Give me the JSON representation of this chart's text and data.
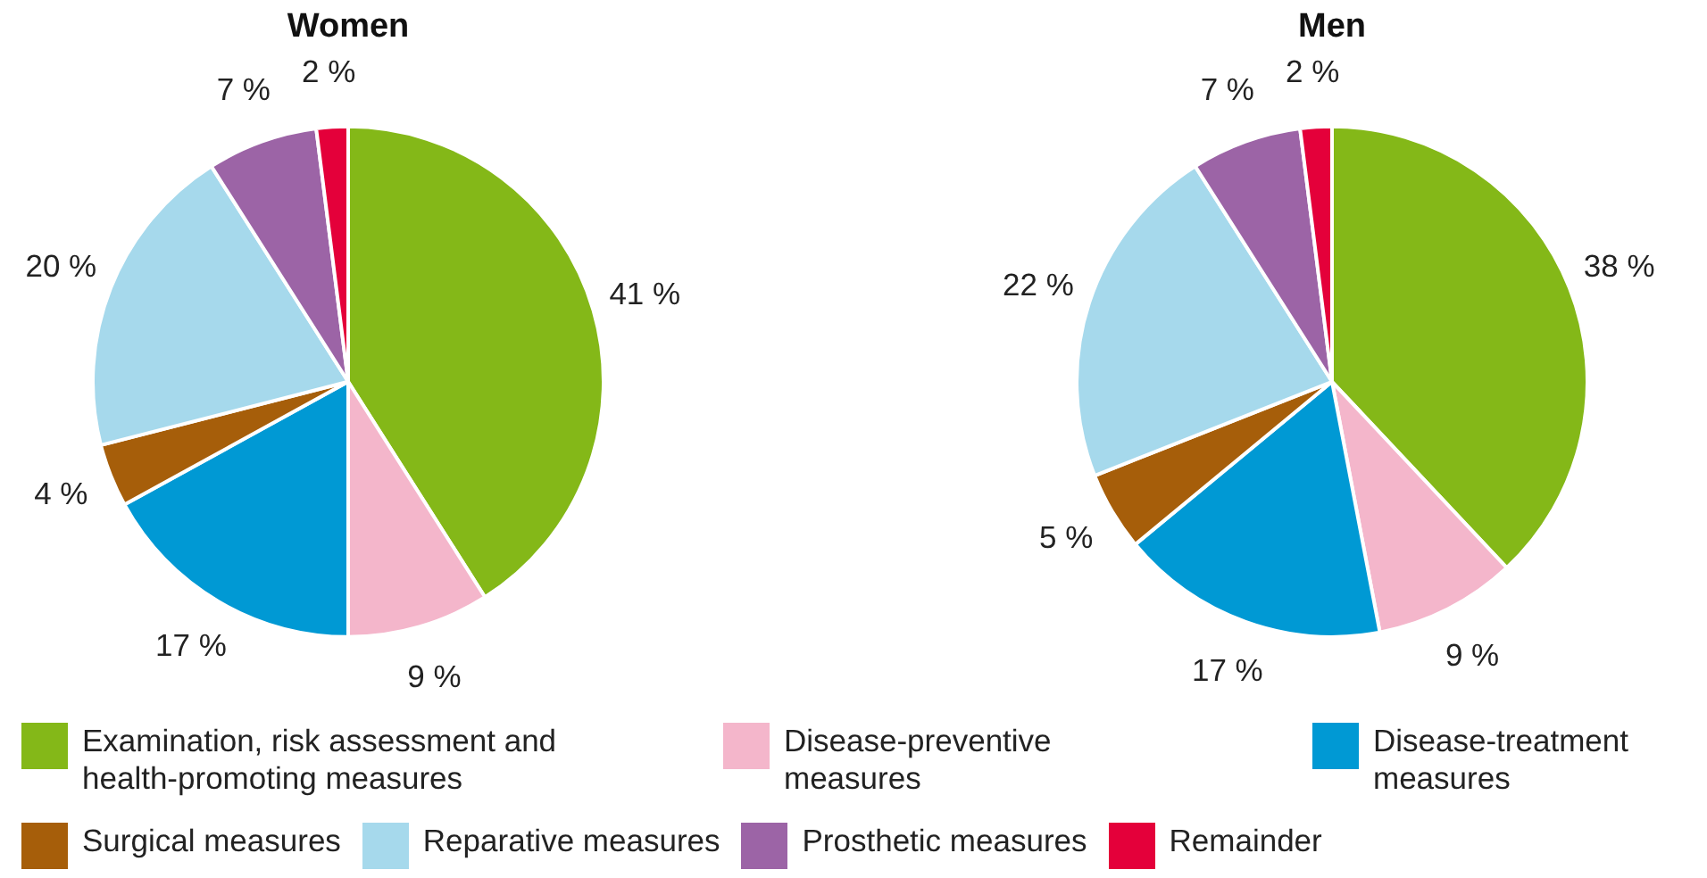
{
  "chart_data": [
    {
      "type": "pie",
      "title": "Women",
      "categories": [
        "Examination, risk assessment and health-promoting measures",
        "Disease-preventive measures",
        "Disease-treatment measures",
        "Surgical measures",
        "Reparative measures",
        "Prosthetic measures",
        "Remainder"
      ],
      "values": [
        41,
        9,
        17,
        4,
        20,
        7,
        2
      ],
      "colors": [
        "#84b818",
        "#f4b6cb",
        "#0099d4",
        "#a65e0a",
        "#a6d9ec",
        "#9c64a6",
        "#e4003a"
      ],
      "value_labels": [
        "41 %",
        "9 %",
        "17 %",
        "4 %",
        "20 %",
        "7 %",
        "2 %"
      ],
      "legend": "bottom"
    },
    {
      "type": "pie",
      "title": "Men",
      "categories": [
        null,
        null,
        null,
        null,
        null,
        null,
        null
      ],
      "values": [
        38,
        9,
        17,
        5,
        22,
        7,
        2
      ],
      "colors": [
        "#84b818",
        "#f4b6cb",
        "#0099d4",
        "#a65e0a",
        "#a6d9ec",
        "#9c64a6",
        "#e4003a"
      ],
      "value_labels": [
        "38 %",
        "9 %",
        "17 %",
        "5 %",
        "22 %",
        "7 %",
        "2 %"
      ]
    }
  ]
}
